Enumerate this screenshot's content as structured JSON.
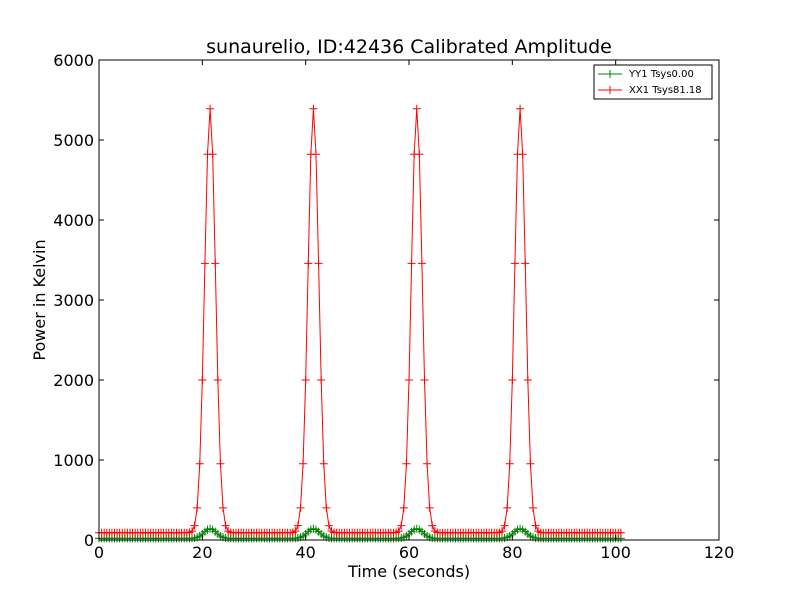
{
  "chart_data": {
    "type": "line",
    "title": "sunaurelio, ID:42436 Calibrated Amplitude",
    "xlabel": "Time (seconds)",
    "ylabel": "Power in Kelvin",
    "xlim": [
      0,
      120
    ],
    "ylim": [
      0,
      6000
    ],
    "xticks": [
      "0",
      "20",
      "40",
      "60",
      "80",
      "100",
      "120"
    ],
    "yticks": [
      "0",
      "1000",
      "2000",
      "3000",
      "4000",
      "5000",
      "6000"
    ],
    "grid": false,
    "legend_position": "top-right",
    "series": [
      {
        "name": "YY1 Tsys0.00",
        "color": "#008000",
        "marker": "plus",
        "baseline": 20,
        "peak_centers": [
          21.5,
          41.5,
          61.5,
          81.5
        ],
        "peak_amplitude": 120,
        "peak_width": 1.2,
        "x_range": [
          0,
          101
        ]
      },
      {
        "name": "XX1 Tsys81.18",
        "color": "#ff0000",
        "marker": "plus",
        "baseline": 90,
        "peak_centers": [
          21.5,
          41.5,
          61.5,
          81.5
        ],
        "peak_amplitude": 5300,
        "peak_width": 1.05,
        "x_range": [
          0,
          101
        ]
      }
    ]
  }
}
